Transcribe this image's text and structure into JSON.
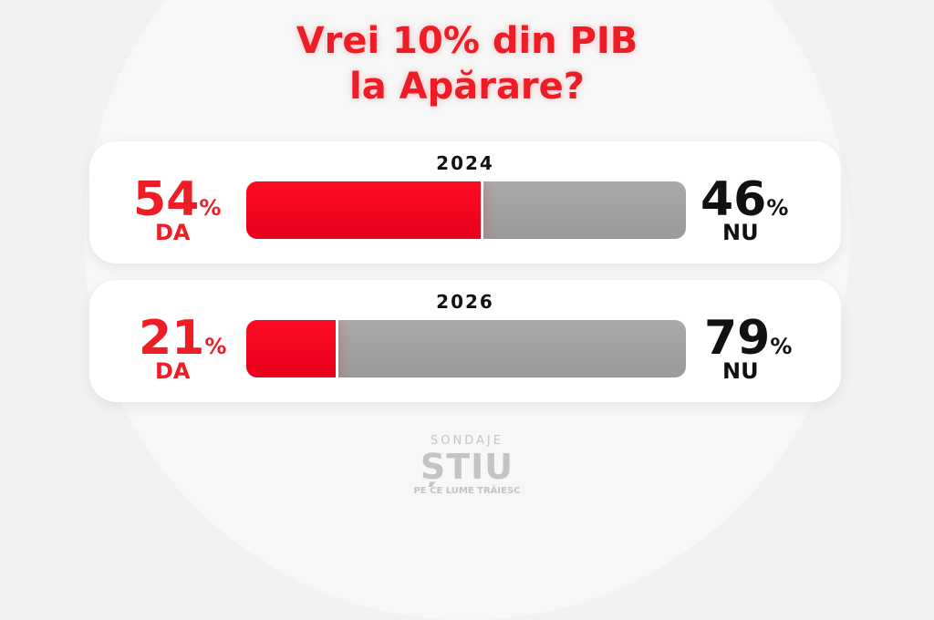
{
  "title": {
    "line1": "Vrei 10% din PIB",
    "line2": "la Apărare?"
  },
  "colors": {
    "yes": "#ee1c25",
    "no": "#a3a3a3"
  },
  "chart_data": {
    "type": "bar",
    "title": "Vrei 10% din PIB la Apărare?",
    "categories": [
      "2024",
      "2026"
    ],
    "series": [
      {
        "name": "DA",
        "values": [
          54,
          21
        ]
      },
      {
        "name": "NU",
        "values": [
          46,
          79
        ]
      }
    ],
    "ylim": [
      0,
      100
    ],
    "unit": "%"
  },
  "rows": [
    {
      "year": "2024",
      "yes": "54",
      "no": "46",
      "yes_label": "DA",
      "no_label": "NU",
      "pct": "%"
    },
    {
      "year": "2026",
      "yes": "21",
      "no": "79",
      "yes_label": "DA",
      "no_label": "NU",
      "pct": "%"
    }
  ],
  "logo": {
    "top": "SONDAJE",
    "main": "ȘTIU",
    "sub": "PE CE LUME TRĂIESC"
  }
}
